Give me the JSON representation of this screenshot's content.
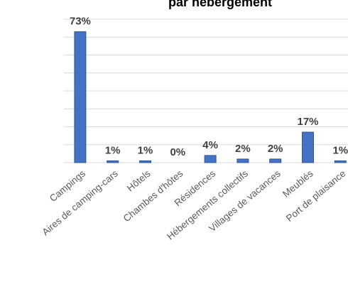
{
  "chart_data": {
    "type": "bar",
    "title": "par hébergement",
    "categories": [
      "Campings",
      "Aires de camping-cars",
      "Hôtels",
      "Chambes d'hôtes",
      "Résidences",
      "Hébergements collectifs",
      "Villages de vacances",
      "Meublés",
      "Port de plaisance"
    ],
    "values": [
      73,
      1,
      1,
      0,
      4,
      2,
      2,
      17,
      1
    ],
    "value_labels": [
      "73%",
      "1%",
      "1%",
      "0%",
      "4%",
      "2%",
      "2%",
      "17%",
      "1%"
    ],
    "color": "#4472c4",
    "ylim": [
      0,
      80
    ],
    "yticks": [
      0,
      10,
      20,
      30,
      40,
      50,
      60,
      70,
      80
    ],
    "grid": true
  }
}
